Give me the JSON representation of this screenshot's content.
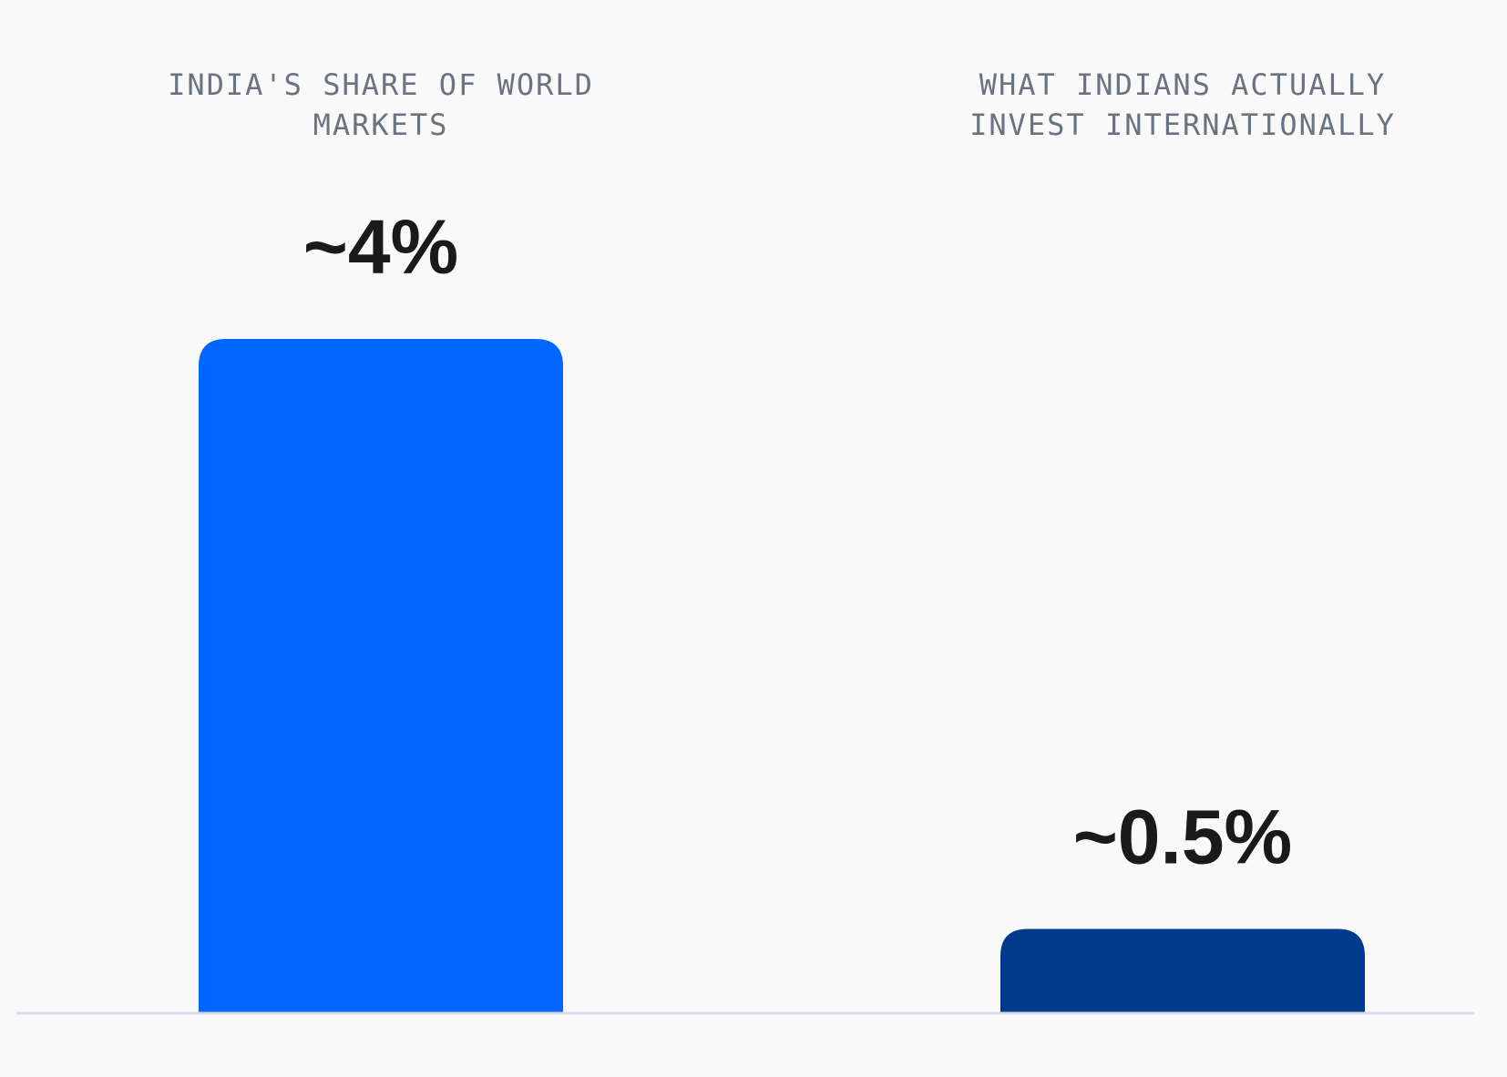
{
  "chart_data": {
    "type": "bar",
    "categories": [
      [
        "INDIA'S SHARE OF WORLD",
        "MARKETS"
      ],
      [
        "WHAT INDIANS ACTUALLY",
        "INVEST INTERNATIONALLY"
      ]
    ],
    "values": [
      4,
      0.5
    ],
    "value_labels": [
      "~4%",
      "~0.5%"
    ],
    "colors": [
      "#0066ff",
      "#003a8c"
    ],
    "baseline_color": "#d4dbe3"
  }
}
